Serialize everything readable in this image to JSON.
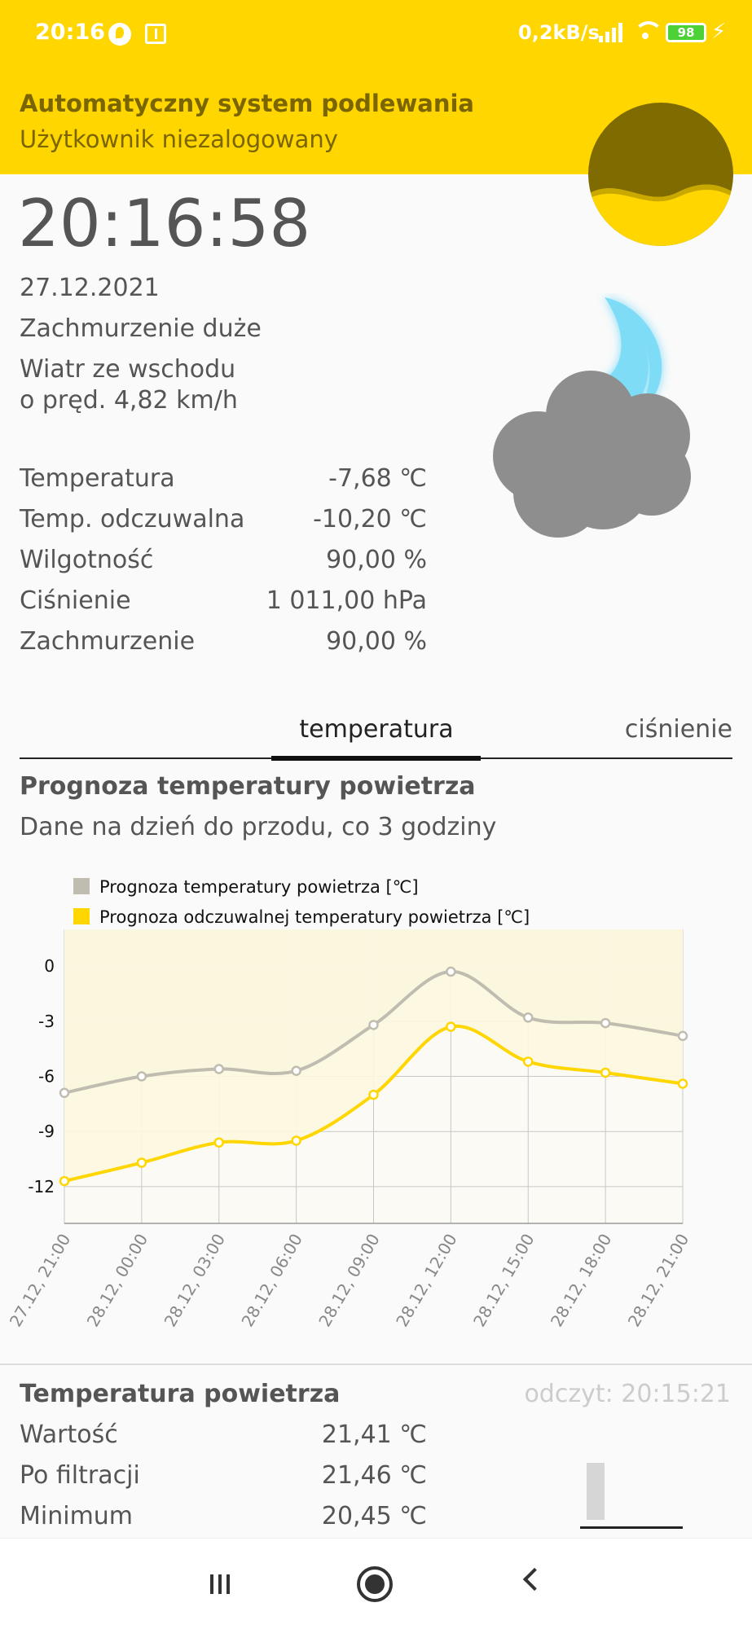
{
  "status_bar": {
    "time": "20:16",
    "speed": "0,2kB/s",
    "battery": "98"
  },
  "header": {
    "title": "Automatyczny system podlewania",
    "subtitle": "Użytkownik niezalogowany"
  },
  "weather": {
    "clock": "20:16:58",
    "date": "27.12.2021",
    "condition": "Zachmurzenie duże",
    "wind_line1": "Wiatr ze wschodu",
    "wind_line2": "o pręd. 4,82 km/h",
    "stats": [
      {
        "label": "Temperatura",
        "value": "-7,68 ℃"
      },
      {
        "label": "Temp. odczuwalna",
        "value": "-10,20 ℃"
      },
      {
        "label": "Wilgotność",
        "value": "90,00 %"
      },
      {
        "label": "Ciśnienie",
        "value": "1 011,00 hPa"
      },
      {
        "label": "Zachmurzenie",
        "value": "90,00 %"
      }
    ],
    "icon": "night-cloud-moon-icon"
  },
  "tabs": [
    {
      "label": "temperatura",
      "active": true
    },
    {
      "label": "ciśnienie",
      "active": false
    }
  ],
  "forecast": {
    "title": "Prognoza temperatury powietrza",
    "subtitle": "Dane na dzień do przodu, co 3 godziny"
  },
  "chart_data": {
    "type": "line",
    "categories": [
      "27.12, 21:00",
      "28.12, 00:00",
      "28.12, 03:00",
      "28.12, 06:00",
      "28.12, 09:00",
      "28.12, 12:00",
      "28.12, 15:00",
      "28.12, 18:00",
      "28.12, 21:00"
    ],
    "series": [
      {
        "name": "Prognoza temperatury powietrza [℃]",
        "color": "#c0bcb0",
        "values": [
          -6.9,
          -6.0,
          -5.6,
          -5.7,
          -3.2,
          -0.3,
          -2.8,
          -3.1,
          -3.8
        ]
      },
      {
        "name": "Prognoza odczuwalnej temperatury powietrza [℃]",
        "color": "#ffd600",
        "values": [
          -11.7,
          -10.7,
          -9.6,
          -9.5,
          -7.0,
          -3.3,
          -5.2,
          -5.8,
          -6.4
        ]
      }
    ],
    "yticks": [
      "0",
      "-3",
      "-6",
      "-9",
      "-12"
    ],
    "ylim": [
      -14,
      2
    ],
    "legend": "top-left",
    "grid": true
  },
  "sensor": {
    "title": "Temperatura powietrza",
    "read_time": "odczyt: 20:15:21",
    "rows": [
      {
        "label": "Wartość",
        "value": "21,41 ℃"
      },
      {
        "label": "Po filtracji",
        "value": "21,46 ℃"
      },
      {
        "label": "Minimum",
        "value": "20,45 ℃"
      }
    ]
  }
}
